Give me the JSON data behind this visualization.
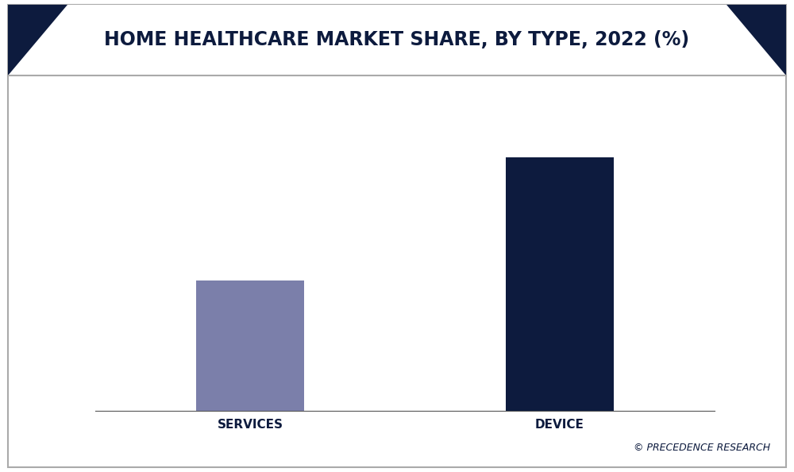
{
  "categories": [
    "SERVICES",
    "DEVICE"
  ],
  "values": [
    34,
    66
  ],
  "bar_colors": [
    "#7b7faa",
    "#0d1b3e"
  ],
  "title": "HOME HEALTHCARE MARKET SHARE, BY TYPE, 2022 (%)",
  "title_color": "#0d1b3e",
  "title_fontsize": 17,
  "background_color": "#ffffff",
  "border_color": "#cccccc",
  "tick_label_color": "#0d1b3e",
  "tick_label_fontsize": 11,
  "watermark_text": "© PRECEDENCE RESEARCH",
  "watermark_color": "#0d1b3e",
  "ylim": [
    0,
    80
  ],
  "bar_width": 0.35,
  "header_bg_color": "#ffffff",
  "header_triangle_color": "#0d1b3e"
}
